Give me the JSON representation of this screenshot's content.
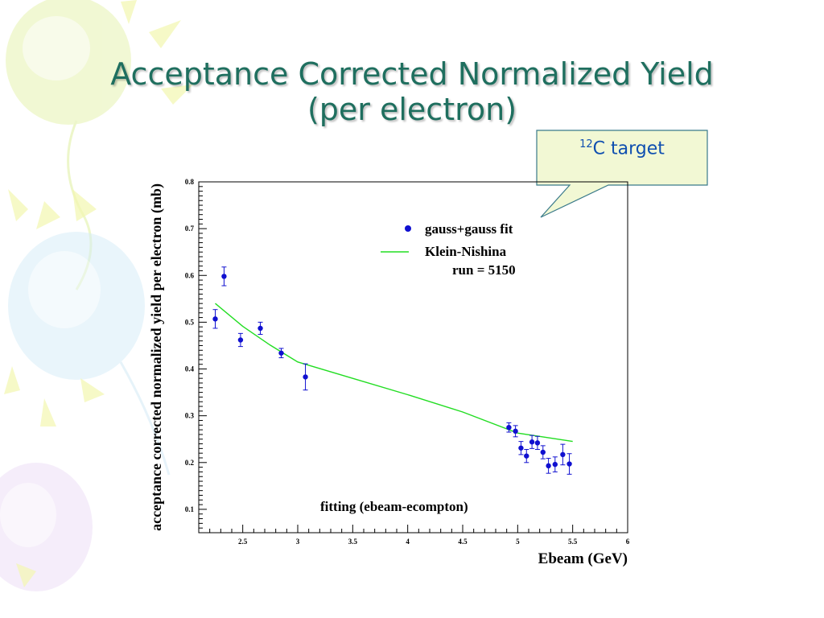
{
  "slide": {
    "title_line1": "Acceptance Corrected Normalized Yield",
    "title_line2": "(per electron)",
    "callout_sup": "12",
    "callout_text": "C target",
    "colors": {
      "title": "#1f6f5f",
      "callout_bg": "#f2f8d4",
      "callout_border": "#3a7a8a",
      "callout_text": "#0f4fb0"
    }
  },
  "chart_data": {
    "type": "scatter",
    "xlabel": "Ebeam (GeV)",
    "ylabel": "acceptance corrected normalized yield per electron (mb)",
    "xlim": [
      2.1,
      6.0
    ],
    "ylim": [
      0.05,
      0.8
    ],
    "x_ticks": [
      "2.5",
      "3",
      "3.5",
      "4",
      "4.5",
      "5",
      "5.5",
      "6"
    ],
    "y_ticks": [
      "0.1",
      "0.2",
      "0.3",
      "0.4",
      "0.5",
      "0.6",
      "0.7",
      "0.8"
    ],
    "annotation": "fitting (ebeam-ecompton)",
    "legend": {
      "position": "top-right",
      "points_label": "gauss+gauss fit",
      "line_label": "Klein-Nishina",
      "run_label": "run =  5150"
    },
    "series": [
      {
        "name": "gauss+gauss fit",
        "kind": "points",
        "color": "#1010d0",
        "points": [
          {
            "x": 2.25,
            "y": 0.507,
            "err": 0.02
          },
          {
            "x": 2.33,
            "y": 0.598,
            "err": 0.02
          },
          {
            "x": 2.48,
            "y": 0.462,
            "err": 0.014
          },
          {
            "x": 2.66,
            "y": 0.487,
            "err": 0.013
          },
          {
            "x": 2.85,
            "y": 0.434,
            "err": 0.01
          },
          {
            "x": 3.07,
            "y": 0.383,
            "err": 0.028
          },
          {
            "x": 4.92,
            "y": 0.275,
            "err": 0.01
          },
          {
            "x": 4.98,
            "y": 0.267,
            "err": 0.012
          },
          {
            "x": 5.03,
            "y": 0.231,
            "err": 0.014
          },
          {
            "x": 5.08,
            "y": 0.214,
            "err": 0.014
          },
          {
            "x": 5.13,
            "y": 0.244,
            "err": 0.014
          },
          {
            "x": 5.18,
            "y": 0.242,
            "err": 0.014
          },
          {
            "x": 5.23,
            "y": 0.222,
            "err": 0.014
          },
          {
            "x": 5.28,
            "y": 0.193,
            "err": 0.016
          },
          {
            "x": 5.34,
            "y": 0.196,
            "err": 0.016
          },
          {
            "x": 5.41,
            "y": 0.217,
            "err": 0.022
          },
          {
            "x": 5.47,
            "y": 0.197,
            "err": 0.022
          }
        ]
      },
      {
        "name": "Klein-Nishina",
        "kind": "line",
        "color": "#22dd22",
        "points": [
          {
            "x": 2.25,
            "y": 0.54
          },
          {
            "x": 2.5,
            "y": 0.491
          },
          {
            "x": 2.75,
            "y": 0.451
          },
          {
            "x": 3.0,
            "y": 0.415
          },
          {
            "x": 3.5,
            "y": 0.38
          },
          {
            "x": 4.0,
            "y": 0.345
          },
          {
            "x": 4.5,
            "y": 0.308
          },
          {
            "x": 5.0,
            "y": 0.263
          },
          {
            "x": 5.5,
            "y": 0.245
          }
        ]
      }
    ]
  }
}
